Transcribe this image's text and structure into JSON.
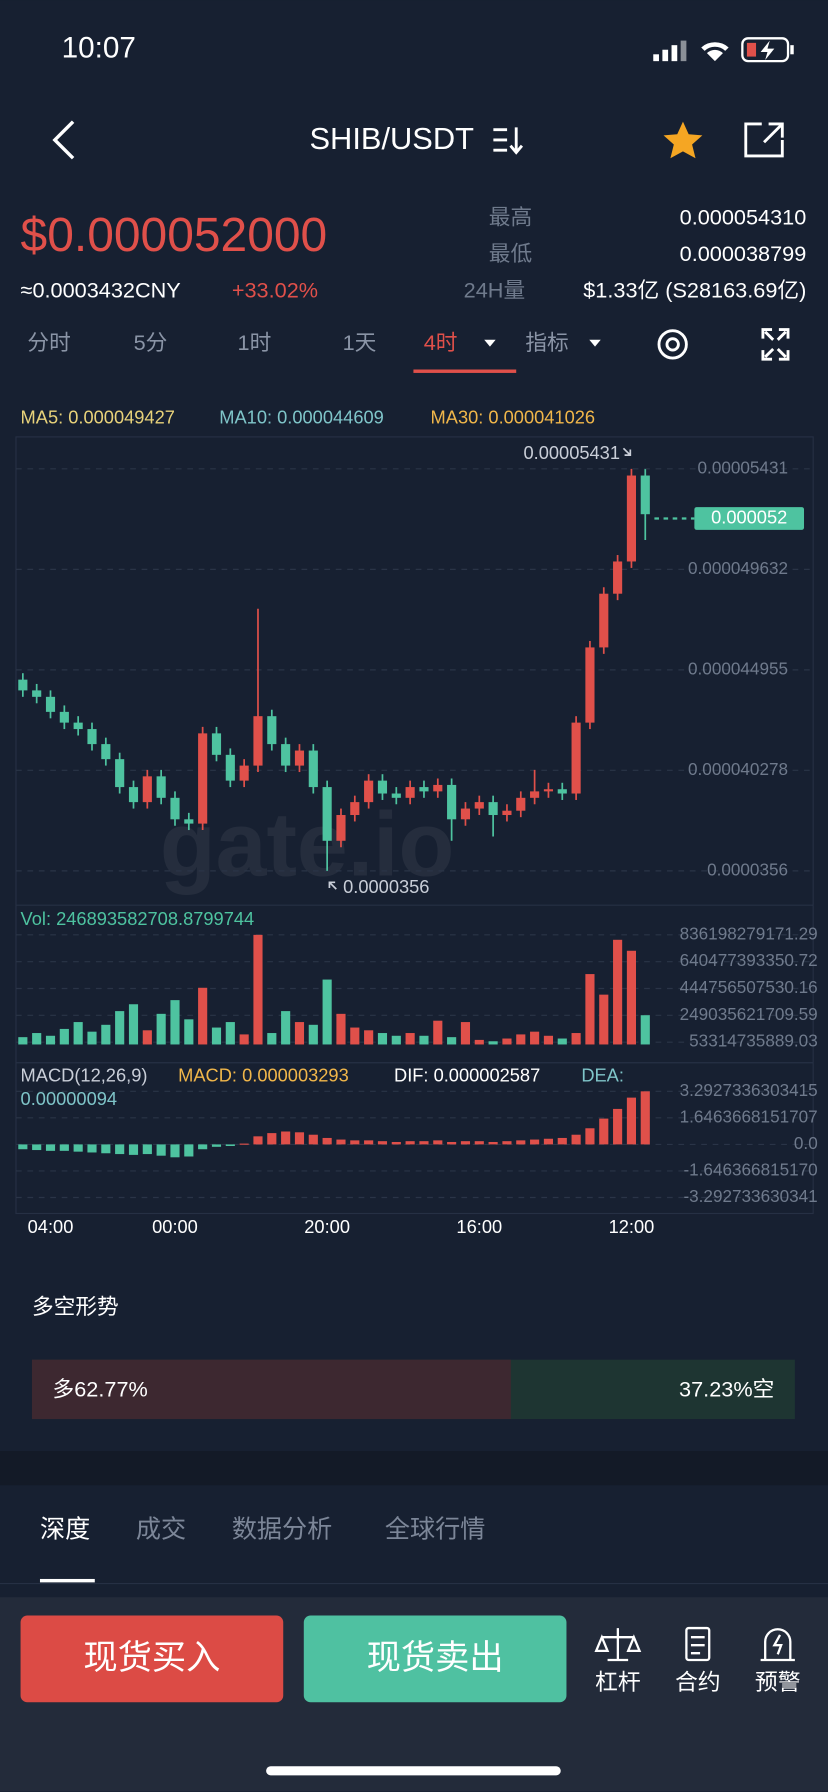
{
  "status": {
    "time": "10:07"
  },
  "header": {
    "title": "SHIB/USDT"
  },
  "ticker": {
    "price": "$0.000052000",
    "cny": "≈0.0003432CNY",
    "change": "+33.02%",
    "high_label": "最高",
    "high": "0.000054310",
    "low_label": "最低",
    "low": "0.000038799",
    "volume_label": "24H量",
    "volume": "$1.33亿 (S28163.69亿)"
  },
  "intervals": [
    "分时",
    "5分",
    "1时",
    "1天",
    "4时",
    "指标"
  ],
  "ma": [
    {
      "text": "MA5: 0.000049427",
      "color": "#e8d27a"
    },
    {
      "text": "MA10: 0.000044609",
      "color": "#7fc5c9"
    },
    {
      "text": "MA30: 0.000041026",
      "color": "#f0b64a"
    }
  ],
  "chart_data": {
    "type": "candlestick",
    "categories": [
      null,
      null,
      "04:00",
      null,
      null,
      null,
      null,
      null,
      null,
      null,
      null,
      "00:00",
      null,
      null,
      null,
      null,
      null,
      null,
      null,
      null,
      null,
      null,
      "20:00",
      null,
      null,
      null,
      null,
      null,
      null,
      null,
      null,
      null,
      null,
      "16:00",
      null,
      null,
      null,
      null,
      null,
      null,
      null,
      null,
      null,
      null,
      "12:00",
      null
    ],
    "open": [
      4.45e-05,
      4.4e-05,
      4.37e-05,
      4.3e-05,
      4.25e-05,
      4.22e-05,
      4.15e-05,
      4.08e-05,
      3.95e-05,
      3.88e-05,
      4e-05,
      3.9e-05,
      3.8e-05,
      3.78e-05,
      4.2e-05,
      4.1e-05,
      3.98e-05,
      4.05e-05,
      4.28e-05,
      4.15e-05,
      4.05e-05,
      4.12e-05,
      3.95e-05,
      3.7e-05,
      3.82e-05,
      3.88e-05,
      3.98e-05,
      3.92e-05,
      3.9e-05,
      3.95e-05,
      3.93e-05,
      3.96e-05,
      3.8e-05,
      3.85e-05,
      3.88e-05,
      3.82e-05,
      3.84e-05,
      3.9e-05,
      3.93e-05,
      3.94e-05,
      3.92e-05,
      4.25e-05,
      4.6e-05,
      4.85e-05,
      5e-05,
      5.4e-05
    ],
    "close": [
      4.4e-05,
      4.37e-05,
      4.3e-05,
      4.25e-05,
      4.22e-05,
      4.15e-05,
      4.08e-05,
      3.95e-05,
      3.88e-05,
      4e-05,
      3.9e-05,
      3.8e-05,
      3.78e-05,
      4.2e-05,
      4.1e-05,
      3.98e-05,
      4.05e-05,
      4.28e-05,
      4.15e-05,
      4.05e-05,
      4.12e-05,
      3.95e-05,
      3.7e-05,
      3.82e-05,
      3.88e-05,
      3.98e-05,
      3.92e-05,
      3.9e-05,
      3.95e-05,
      3.93e-05,
      3.96e-05,
      3.8e-05,
      3.85e-05,
      3.88e-05,
      3.82e-05,
      3.84e-05,
      3.9e-05,
      3.93e-05,
      3.94e-05,
      3.92e-05,
      4.25e-05,
      4.6e-05,
      4.85e-05,
      5e-05,
      5.4e-05,
      5.22e-05
    ],
    "high": [
      4.48e-05,
      4.43e-05,
      4.4e-05,
      4.33e-05,
      4.28e-05,
      4.25e-05,
      4.18e-05,
      4.11e-05,
      3.98e-05,
      4.03e-05,
      4.03e-05,
      3.93e-05,
      3.83e-05,
      4.23e-05,
      4.23e-05,
      4.13e-05,
      4.08e-05,
      4.78e-05,
      4.31e-05,
      4.18e-05,
      4.15e-05,
      4.15e-05,
      3.98e-05,
      3.85e-05,
      3.91e-05,
      4.01e-05,
      4.01e-05,
      3.95e-05,
      3.98e-05,
      3.98e-05,
      3.99e-05,
      3.99e-05,
      3.88e-05,
      3.91e-05,
      3.91e-05,
      3.87e-05,
      3.93e-05,
      4.03e-05,
      3.97e-05,
      3.97e-05,
      4.28e-05,
      4.63e-05,
      4.88e-05,
      5.03e-05,
      5.431e-05,
      5.43e-05
    ],
    "low": [
      4.37e-05,
      4.34e-05,
      4.27e-05,
      4.22e-05,
      4.19e-05,
      4.12e-05,
      4.05e-05,
      3.92e-05,
      3.85e-05,
      3.85e-05,
      3.87e-05,
      3.77e-05,
      3.75e-05,
      3.75e-05,
      4.07e-05,
      3.95e-05,
      3.95e-05,
      4.02e-05,
      4.12e-05,
      4.02e-05,
      4.02e-05,
      3.92e-05,
      3.56e-05,
      3.67e-05,
      3.79e-05,
      3.85e-05,
      3.89e-05,
      3.87e-05,
      3.87e-05,
      3.9e-05,
      3.9e-05,
      3.7e-05,
      3.77e-05,
      3.82e-05,
      3.72e-05,
      3.79e-05,
      3.81e-05,
      3.87e-05,
      3.9e-05,
      3.89e-05,
      3.89e-05,
      4.22e-05,
      4.57e-05,
      4.82e-05,
      4.97e-05,
      5.1e-05
    ],
    "ylim": [
      3.56e-05,
      5.431e-05
    ],
    "yticks": [
      5.431e-05,
      4.9632e-05,
      4.4955e-05,
      4.0278e-05,
      3.56e-05
    ],
    "up_color": "#e0504a",
    "down_color": "#4ec3a0",
    "grid": true,
    "last_price": 5.2e-05,
    "max_label": "0.00005431",
    "min_label": "0.0000356",
    "watermark": "gate.io",
    "volume_title": "Vol: 246893582708.8799744",
    "volume": [
      90000000000.0,
      120000000000.0,
      100000000000.0,
      150000000000.0,
      200000000000.0,
      130000000000.0,
      180000000000.0,
      280000000000.0,
      330000000000.0,
      140000000000.0,
      260000000000.0,
      360000000000.0,
      220000000000.0,
      450000000000.0,
      160000000000.0,
      200000000000.0,
      110000000000.0,
      836000000000.0,
      120000000000.0,
      280000000000.0,
      200000000000.0,
      180000000000.0,
      510000000000.0,
      260000000000.0,
      160000000000.0,
      140000000000.0,
      120000000000.0,
      100000000000.0,
      120000000000.0,
      100000000000.0,
      210000000000.0,
      90000000000.0,
      200000000000.0,
      70000000000.0,
      60000000000.0,
      80000000000.0,
      110000000000.0,
      130000000000.0,
      100000000000.0,
      80000000000.0,
      120000000000.0,
      550000000000.0,
      400000000000.0,
      800000000000.0,
      720000000000.0,
      250000000000.0
    ],
    "volume_lim": [
      53314735889.03,
      836198279171.29
    ],
    "volume_ticks": [
      836198279171.29,
      640477393350.72,
      444756507530.16,
      249035621709.59,
      53314735889.03
    ],
    "macd_title": "MACD(12,26,9)",
    "macd_label": "MACD: 0.000003293",
    "dif_label": "DIF: 0.000002587",
    "dea_label": "DEA:",
    "dea_value": "0.00000094",
    "macd": [
      -0.3,
      -0.35,
      -0.4,
      -0.4,
      -0.45,
      -0.5,
      -0.55,
      -0.6,
      -0.65,
      -0.6,
      -0.7,
      -0.8,
      -0.75,
      -0.3,
      -0.15,
      -0.1,
      0.05,
      0.5,
      0.7,
      0.8,
      0.75,
      0.6,
      0.4,
      0.3,
      0.25,
      0.25,
      0.2,
      0.15,
      0.2,
      0.2,
      0.25,
      0.15,
      0.2,
      0.2,
      0.15,
      0.2,
      0.25,
      0.3,
      0.35,
      0.4,
      0.6,
      1.0,
      1.6,
      2.2,
      2.9,
      3.29
    ],
    "macd_lim": [
      -3.2927336303415,
      3.2927336303415
    ],
    "macd_ticks": [
      3.2927336303415,
      1.6463668151707,
      {
        "value": 0,
        "label": "0.0"
      },
      {
        "value": -1.6463668151707,
        "label": "-1.646366815170"
      },
      {
        "value": -3.2927336303415,
        "label": "-3.292733630341"
      }
    ]
  },
  "sentiment": {
    "title": "多空形势",
    "long_label": "多",
    "long_value": 62.77,
    "long_value_label": "62.77%",
    "short_value": 37.23,
    "short_value_label": "37.23%",
    "short_label": "空"
  },
  "tabs": [
    "深度",
    "成交",
    "数据分析",
    "全球行情"
  ],
  "actions": {
    "buy": "现货买入",
    "sell": "现货卖出",
    "tools": [
      "杠杆",
      "合约",
      "预警"
    ]
  }
}
